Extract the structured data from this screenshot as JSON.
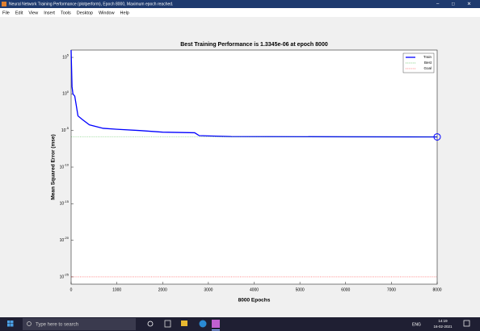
{
  "window": {
    "title": "Neural Network Training Performance (plotperform), Epoch 8000, Maximum epoch reached."
  },
  "menu": [
    "File",
    "Edit",
    "View",
    "Insert",
    "Tools",
    "Desktop",
    "Window",
    "Help"
  ],
  "chart_data": {
    "type": "line",
    "title": "Best Training Performance is 1.3345e-06 at epoch 8000",
    "xlabel": "8000 Epochs",
    "ylabel": "Mean Squared Error  (mse)",
    "xlim": [
      0,
      8000
    ],
    "xticks": [
      0,
      1000,
      2000,
      3000,
      4000,
      5000,
      6000,
      7000,
      8000
    ],
    "yscale": "log",
    "ylim": [
      1e-26,
      1000000
    ],
    "yticks": [
      {
        "value": 100000,
        "label": "10^5"
      },
      {
        "value": 1,
        "label": "10^0"
      },
      {
        "value": 1e-05,
        "label": "10^-5"
      },
      {
        "value": 1e-10,
        "label": "10^-10"
      },
      {
        "value": 1e-15,
        "label": "10^-15"
      },
      {
        "value": 1e-20,
        "label": "10^-20"
      },
      {
        "value": 1e-25,
        "label": "10^-25"
      }
    ],
    "legend": "upper right",
    "series": [
      {
        "name": "Train",
        "color": "#0000ff",
        "x": [
          0,
          20,
          40,
          80,
          150,
          250,
          400,
          700,
          1000,
          1500,
          2000,
          2700,
          2800,
          3500,
          6000,
          8000
        ],
        "values": [
          1000000,
          10,
          1,
          0.5,
          0.001,
          0.0003,
          6e-05,
          2e-05,
          1.5e-05,
          1e-05,
          6e-06,
          5e-06,
          2e-06,
          1.5e-06,
          1.4e-06,
          1.3345e-06
        ]
      },
      {
        "name": "Best",
        "color": "#00a000",
        "x": [
          8000
        ],
        "values": [
          1.3345e-06
        ]
      },
      {
        "name": "Goal",
        "color": "#ff0000",
        "values": [
          1e-25
        ]
      }
    ]
  },
  "taskbar": {
    "search": "Type here to search",
    "lang": "ENG",
    "time": "14:19",
    "date": "16-02-2021"
  }
}
